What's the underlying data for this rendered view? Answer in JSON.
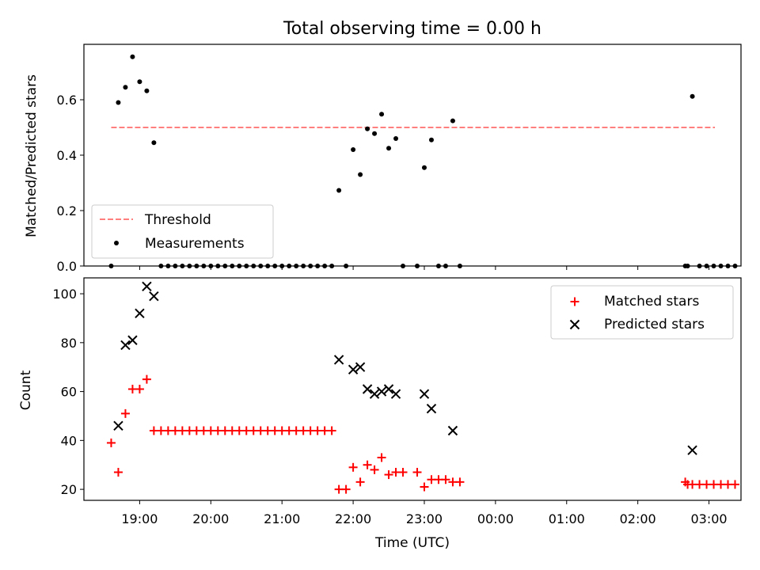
{
  "title": "Total observing time = 0.00 h",
  "chart_data": [
    {
      "type": "scatter",
      "ylabel": "Matched/Predicted stars",
      "ylim": [
        0,
        0.8
      ],
      "yticks": [
        "0.0",
        "0.2",
        "0.4",
        "0.6"
      ],
      "xlim": [
        "18:13",
        "03:27"
      ],
      "legend": "lower-left",
      "threshold": {
        "name": "Threshold",
        "value": 0.5,
        "x_start": "18:36",
        "x_end": "03:05",
        "color": "#ff7f7f",
        "style": "dashed"
      },
      "series": [
        {
          "name": "Measurements",
          "color": "#000000",
          "marker": "dot",
          "points": [
            [
              "18:36",
              0
            ],
            [
              "18:42",
              0.59
            ],
            [
              "18:48",
              0.645
            ],
            [
              "18:54",
              0.755
            ],
            [
              "19:00",
              0.665
            ],
            [
              "19:06",
              0.632
            ],
            [
              "19:12",
              0.445
            ],
            [
              "19:18",
              0
            ],
            [
              "19:24",
              0
            ],
            [
              "19:30",
              0
            ],
            [
              "19:36",
              0
            ],
            [
              "19:42",
              0
            ],
            [
              "19:48",
              0
            ],
            [
              "19:54",
              0
            ],
            [
              "20:00",
              0
            ],
            [
              "20:06",
              0
            ],
            [
              "20:12",
              0
            ],
            [
              "20:18",
              0
            ],
            [
              "20:24",
              0
            ],
            [
              "20:30",
              0
            ],
            [
              "20:36",
              0
            ],
            [
              "20:42",
              0
            ],
            [
              "20:48",
              0
            ],
            [
              "20:54",
              0
            ],
            [
              "21:00",
              0
            ],
            [
              "21:06",
              0
            ],
            [
              "21:12",
              0
            ],
            [
              "21:18",
              0
            ],
            [
              "21:24",
              0
            ],
            [
              "21:30",
              0
            ],
            [
              "21:36",
              0
            ],
            [
              "21:42",
              0
            ],
            [
              "21:48",
              0.273
            ],
            [
              "21:54",
              0
            ],
            [
              "22:00",
              0.42
            ],
            [
              "22:06",
              0.33
            ],
            [
              "22:12",
              0.495
            ],
            [
              "22:18",
              0.478
            ],
            [
              "22:24",
              0.548
            ],
            [
              "22:30",
              0.425
            ],
            [
              "22:36",
              0.46
            ],
            [
              "22:42",
              0
            ],
            [
              "22:54",
              0
            ],
            [
              "23:00",
              0.355
            ],
            [
              "23:06",
              0.455
            ],
            [
              "23:12",
              0
            ],
            [
              "23:18",
              0
            ],
            [
              "23:24",
              0.524
            ],
            [
              "23:30",
              0
            ],
            [
              "02:40",
              0
            ],
            [
              "02:42",
              0
            ],
            [
              "02:46",
              0.612
            ],
            [
              "02:52",
              0
            ],
            [
              "02:58",
              0
            ],
            [
              "03:04",
              0
            ],
            [
              "03:10",
              0
            ],
            [
              "03:16",
              0
            ],
            [
              "03:22",
              0
            ]
          ]
        }
      ]
    },
    {
      "type": "scatter",
      "ylabel": "Count",
      "xlabel": "Time (UTC)",
      "ylim": [
        15.5,
        106.5
      ],
      "yticks": [
        "20",
        "40",
        "60",
        "80",
        "100"
      ],
      "xlim": [
        "18:13",
        "03:27"
      ],
      "xticks": [
        "19:00",
        "20:00",
        "21:00",
        "22:00",
        "23:00",
        "00:00",
        "01:00",
        "02:00",
        "03:00"
      ],
      "legend": "top-right",
      "series": [
        {
          "name": "Matched stars",
          "color": "#ff0000",
          "marker": "plus",
          "points": [
            [
              "18:36",
              39
            ],
            [
              "18:42",
              27
            ],
            [
              "18:48",
              51
            ],
            [
              "18:54",
              61
            ],
            [
              "19:00",
              61
            ],
            [
              "19:06",
              65
            ],
            [
              "19:12",
              44
            ],
            [
              "19:18",
              44
            ],
            [
              "19:24",
              44
            ],
            [
              "19:30",
              44
            ],
            [
              "19:36",
              44
            ],
            [
              "19:42",
              44
            ],
            [
              "19:48",
              44
            ],
            [
              "19:54",
              44
            ],
            [
              "20:00",
              44
            ],
            [
              "20:06",
              44
            ],
            [
              "20:12",
              44
            ],
            [
              "20:18",
              44
            ],
            [
              "20:24",
              44
            ],
            [
              "20:30",
              44
            ],
            [
              "20:36",
              44
            ],
            [
              "20:42",
              44
            ],
            [
              "20:48",
              44
            ],
            [
              "20:54",
              44
            ],
            [
              "21:00",
              44
            ],
            [
              "21:06",
              44
            ],
            [
              "21:12",
              44
            ],
            [
              "21:18",
              44
            ],
            [
              "21:24",
              44
            ],
            [
              "21:30",
              44
            ],
            [
              "21:36",
              44
            ],
            [
              "21:42",
              44
            ],
            [
              "21:48",
              20
            ],
            [
              "21:54",
              20
            ],
            [
              "22:00",
              29
            ],
            [
              "22:06",
              23
            ],
            [
              "22:12",
              30
            ],
            [
              "22:18",
              28
            ],
            [
              "22:24",
              33
            ],
            [
              "22:30",
              26
            ],
            [
              "22:36",
              27
            ],
            [
              "22:42",
              27
            ],
            [
              "22:54",
              27
            ],
            [
              "23:00",
              21
            ],
            [
              "23:06",
              24
            ],
            [
              "23:12",
              24
            ],
            [
              "23:18",
              24
            ],
            [
              "23:24",
              23
            ],
            [
              "23:30",
              23
            ],
            [
              "02:40",
              23
            ],
            [
              "02:42",
              22
            ],
            [
              "02:46",
              22
            ],
            [
              "02:52",
              22
            ],
            [
              "02:58",
              22
            ],
            [
              "03:04",
              22
            ],
            [
              "03:10",
              22
            ],
            [
              "03:16",
              22
            ],
            [
              "03:22",
              22
            ]
          ]
        },
        {
          "name": "Predicted stars",
          "color": "#000000",
          "marker": "x",
          "points": [
            [
              "18:42",
              46
            ],
            [
              "18:48",
              79
            ],
            [
              "18:54",
              81
            ],
            [
              "19:00",
              92
            ],
            [
              "19:06",
              103
            ],
            [
              "19:12",
              99
            ],
            [
              "21:48",
              73
            ],
            [
              "22:00",
              69
            ],
            [
              "22:06",
              70
            ],
            [
              "22:12",
              61
            ],
            [
              "22:18",
              59
            ],
            [
              "22:24",
              60
            ],
            [
              "22:30",
              61
            ],
            [
              "22:36",
              59
            ],
            [
              "23:00",
              59
            ],
            [
              "23:06",
              53
            ],
            [
              "23:24",
              44
            ],
            [
              "02:46",
              36
            ]
          ]
        }
      ]
    }
  ]
}
